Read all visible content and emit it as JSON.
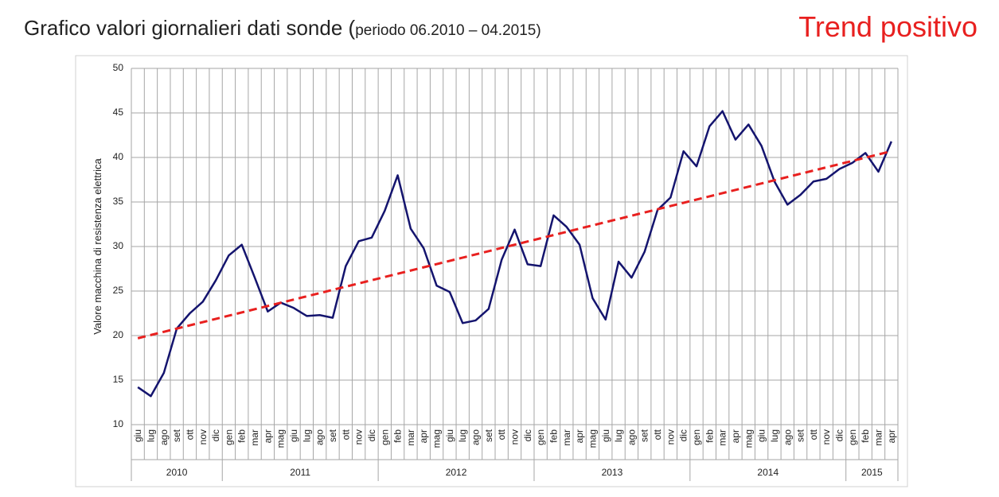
{
  "chart_data": {
    "type": "line",
    "title": "Grafico valori giornalieri dati sonde (",
    "subtitle": "periodo 06.2010 – 04.2015)",
    "annotation": "Trend positivo",
    "y_label": "Valore macchina di resistenza elettrica",
    "categories": [
      "giu",
      "lug",
      "ago",
      "set",
      "ott",
      "nov",
      "dic",
      "gen",
      "feb",
      "mar",
      "apr",
      "mag",
      "giu",
      "lug",
      "ago",
      "set",
      "ott",
      "nov",
      "dic",
      "gen",
      "feb",
      "mar",
      "apr",
      "mag",
      "giu",
      "lug",
      "ago",
      "set",
      "ott",
      "nov",
      "dic",
      "gen",
      "feb",
      "mar",
      "apr",
      "mag",
      "giu",
      "lug",
      "ago",
      "set",
      "ott",
      "nov",
      "dic",
      "gen",
      "feb",
      "mar",
      "apr",
      "mag",
      "giu",
      "lug",
      "ago",
      "set",
      "ott",
      "nov",
      "dic",
      "gen",
      "feb",
      "mar",
      "apr"
    ],
    "year_groups": [
      {
        "label": "2010",
        "count": 7
      },
      {
        "label": "2011",
        "count": 12
      },
      {
        "label": "2012",
        "count": 12
      },
      {
        "label": "2013",
        "count": 12
      },
      {
        "label": "2014",
        "count": 12
      },
      {
        "label": "2015",
        "count": 4
      }
    ],
    "series": [
      {
        "color": "#14146e",
        "values": [
          14.2,
          13.2,
          15.8,
          20.8,
          22.5,
          23.8,
          26.2,
          29.0,
          30.2,
          26.5,
          22.7,
          23.7,
          23.1,
          22.2,
          22.3,
          22.0,
          27.8,
          30.6,
          31.0,
          34.0,
          38.0,
          32.0,
          29.8,
          25.6,
          24.9,
          21.4,
          21.7,
          23.0,
          28.5,
          31.9,
          28.0,
          27.8,
          33.5,
          32.2,
          30.2,
          24.2,
          21.8,
          28.3,
          26.5,
          29.4,
          34.1,
          35.5,
          40.7,
          39.0,
          43.5,
          45.2,
          42.0,
          43.7,
          41.3,
          37.3,
          34.7,
          35.8,
          37.3,
          37.6,
          38.7,
          39.4,
          40.5,
          38.4,
          41.8
        ]
      }
    ],
    "trend_values": [
      19.7,
      40.7
    ],
    "trend_color": "#e8201f",
    "ylim": [
      10,
      50
    ],
    "yticks": [
      10,
      15,
      20,
      25,
      30,
      35,
      40,
      45,
      50
    ],
    "grid": true
  }
}
